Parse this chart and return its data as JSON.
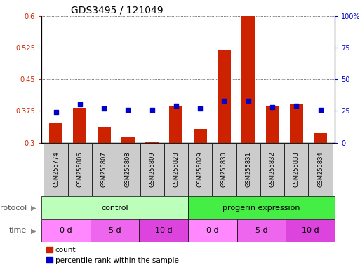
{
  "title": "GDS3495 / 121049",
  "samples": [
    "GSM255774",
    "GSM255806",
    "GSM255807",
    "GSM255808",
    "GSM255809",
    "GSM255828",
    "GSM255829",
    "GSM255830",
    "GSM255831",
    "GSM255832",
    "GSM255833",
    "GSM255834"
  ],
  "count_values": [
    0.345,
    0.383,
    0.335,
    0.312,
    0.303,
    0.388,
    0.332,
    0.518,
    0.6,
    0.385,
    0.39,
    0.322
  ],
  "percentile_values": [
    24,
    30,
    27,
    26,
    26,
    29,
    27,
    33,
    33,
    28,
    29,
    26
  ],
  "ylim_left": [
    0.3,
    0.6
  ],
  "ylim_right": [
    0,
    100
  ],
  "yticks_left": [
    0.3,
    0.375,
    0.45,
    0.525,
    0.6
  ],
  "yticks_right": [
    0,
    25,
    50,
    75,
    100
  ],
  "ytick_labels_left": [
    "0.3",
    "0.375",
    "0.45",
    "0.525",
    "0.6"
  ],
  "ytick_labels_right": [
    "0",
    "25",
    "50",
    "75",
    "100%"
  ],
  "bar_color": "#cc2200",
  "scatter_color": "#0000cc",
  "protocol_groups": [
    {
      "label": "control",
      "start": 0,
      "end": 6,
      "color": "#bbffbb"
    },
    {
      "label": "progerin expression",
      "start": 6,
      "end": 12,
      "color": "#44ee44"
    }
  ],
  "time_groups": [
    {
      "label": "0 d",
      "start": 0,
      "end": 2,
      "color": "#ff88ff"
    },
    {
      "label": "5 d",
      "start": 2,
      "end": 4,
      "color": "#ee66ee"
    },
    {
      "label": "10 d",
      "start": 4,
      "end": 6,
      "color": "#dd44dd"
    },
    {
      "label": "0 d",
      "start": 6,
      "end": 8,
      "color": "#ff88ff"
    },
    {
      "label": "5 d",
      "start": 8,
      "end": 10,
      "color": "#ee66ee"
    },
    {
      "label": "10 d",
      "start": 10,
      "end": 12,
      "color": "#dd44dd"
    }
  ],
  "legend_count_label": "count",
  "legend_pct_label": "percentile rank within the sample",
  "title_fontsize": 10,
  "tick_fontsize": 7,
  "bar_width": 0.55,
  "xlabel_bg": "#dddddd"
}
